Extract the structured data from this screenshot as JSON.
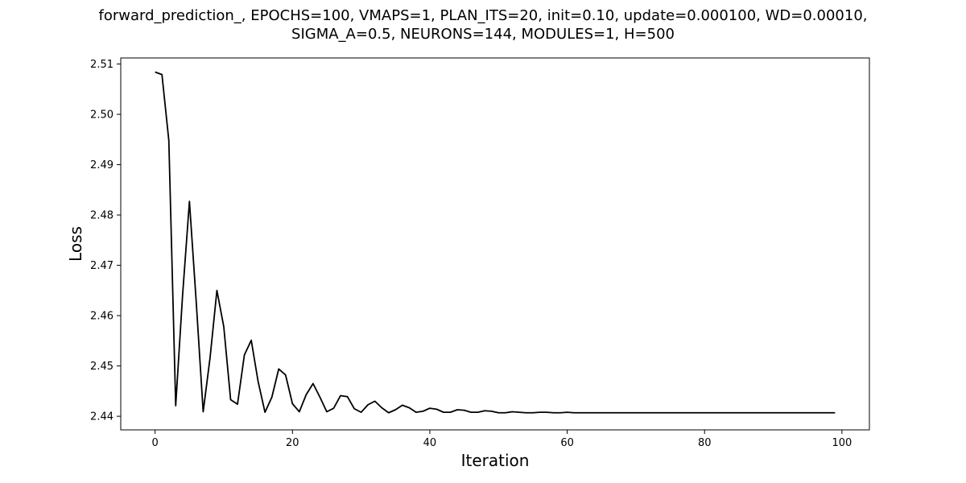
{
  "chart_data": {
    "type": "line",
    "title_line1": "forward_prediction_, EPOCHS=100, VMAPS=1, PLAN_ITS=20, init=0.10, update=0.000100, WD=0.00010,",
    "title_line2": "SIGMA_A=0.5, NEURONS=144, MODULES=1, H=500",
    "xlabel": "Iteration",
    "ylabel": "Loss",
    "xlim": [
      -5,
      104
    ],
    "ylim": [
      2.4373,
      2.5112
    ],
    "xticks": [
      0,
      20,
      40,
      60,
      80,
      100
    ],
    "yticks": [
      2.44,
      2.45,
      2.46,
      2.47,
      2.48,
      2.49,
      2.5,
      2.51
    ],
    "ytick_labels": [
      "2.44",
      "2.45",
      "2.46",
      "2.47",
      "2.48",
      "2.49",
      "2.50",
      "2.51"
    ],
    "grid": false,
    "line_color": "#000000",
    "series": [
      {
        "x": [
          0,
          1,
          2,
          3,
          4,
          5,
          6,
          7,
          8,
          9,
          10,
          11,
          12,
          13,
          14,
          15,
          16,
          17,
          18,
          19,
          20,
          21,
          22,
          23,
          24,
          25,
          26,
          27,
          28,
          29,
          30,
          31,
          32,
          33,
          34,
          35,
          36,
          37,
          38,
          39,
          40,
          41,
          42,
          43,
          44,
          45,
          46,
          47,
          48,
          49,
          50,
          51,
          52,
          53,
          54,
          55,
          56,
          57,
          58,
          59,
          60,
          61,
          62,
          63,
          64,
          65,
          66,
          67,
          68,
          69,
          70,
          71,
          72,
          73,
          74,
          75,
          76,
          77,
          78,
          79,
          80,
          81,
          82,
          83,
          84,
          85,
          86,
          87,
          88,
          89,
          90,
          91,
          92,
          93,
          94,
          95,
          96,
          97,
          98,
          99
        ],
        "values": [
          2.5084,
          2.5079,
          2.4948,
          2.4421,
          2.464,
          2.4827,
          2.4625,
          2.4409,
          2.4516,
          2.465,
          2.4578,
          2.4433,
          2.4424,
          2.4522,
          2.4551,
          2.4469,
          2.4408,
          2.4438,
          2.4494,
          2.4482,
          2.4425,
          2.4409,
          2.4443,
          2.4465,
          2.4438,
          2.4409,
          2.4416,
          2.4441,
          2.4439,
          2.4415,
          2.4408,
          2.4423,
          2.443,
          2.4417,
          2.4407,
          2.4413,
          2.4422,
          2.4417,
          2.4408,
          2.441,
          2.4416,
          2.4414,
          2.4408,
          2.4408,
          2.4413,
          2.4412,
          2.4408,
          2.4408,
          2.4411,
          2.441,
          2.4407,
          2.4407,
          2.4409,
          2.4408,
          2.4407,
          2.4407,
          2.4408,
          2.4408,
          2.4407,
          2.4407,
          2.4408,
          2.4407,
          2.4407,
          2.4407,
          2.4407,
          2.4407,
          2.4407,
          2.4407,
          2.4407,
          2.4407,
          2.4407,
          2.4407,
          2.4407,
          2.4407,
          2.4407,
          2.4407,
          2.4407,
          2.4407,
          2.4407,
          2.4407,
          2.4407,
          2.4407,
          2.4407,
          2.4407,
          2.4407,
          2.4407,
          2.4407,
          2.4407,
          2.4407,
          2.4407,
          2.4407,
          2.4407,
          2.4407,
          2.4407,
          2.4407,
          2.4407,
          2.4407,
          2.4407,
          2.4407,
          2.4407
        ]
      }
    ]
  }
}
